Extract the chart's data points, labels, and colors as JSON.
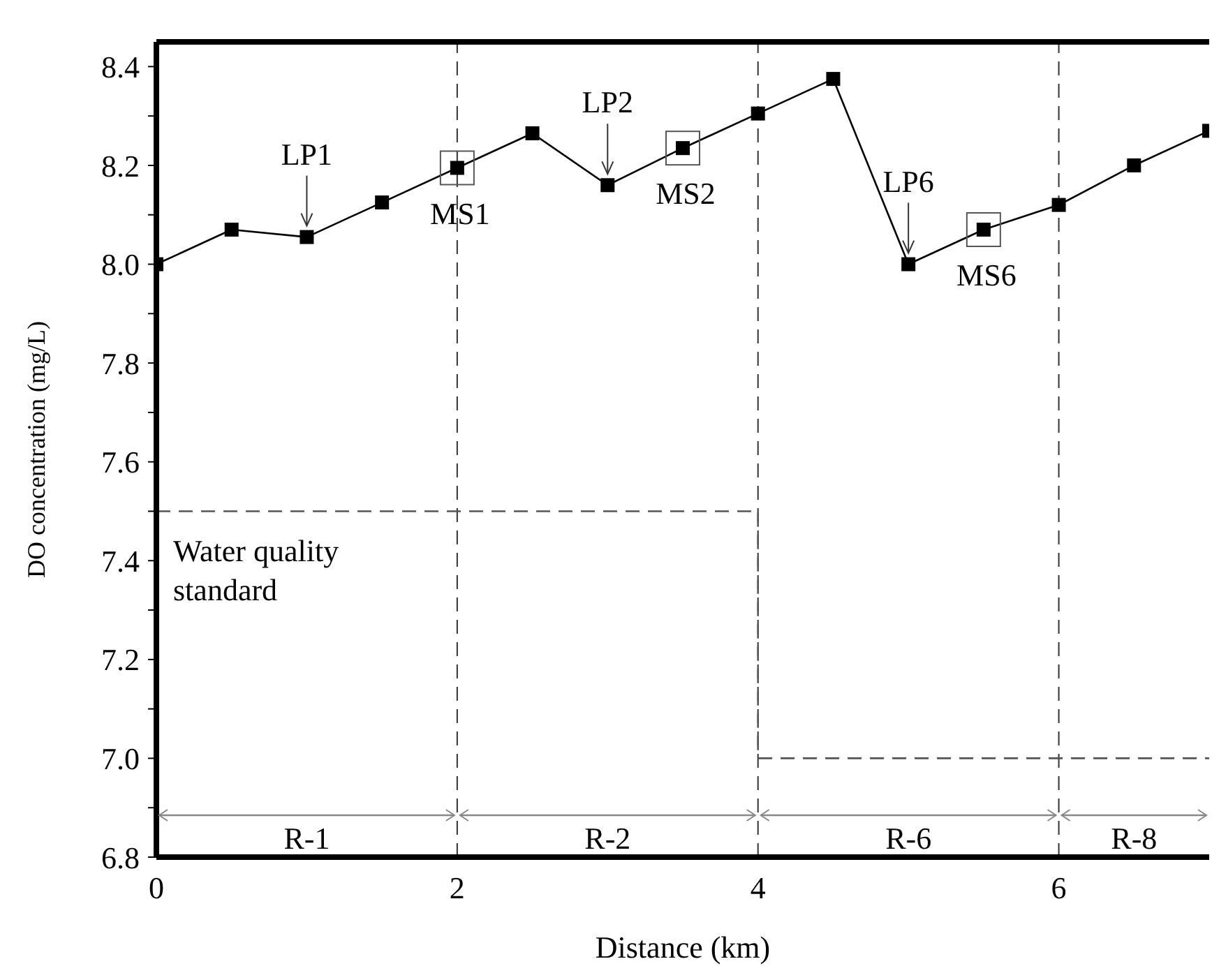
{
  "chart_data": {
    "type": "line",
    "xlabel": "Distance (km)",
    "ylabel": "DO concentration (mg/L)",
    "xlim": [
      0,
      7
    ],
    "xticks": [
      0,
      2,
      4,
      6
    ],
    "ylim": [
      6.8,
      8.45
    ],
    "yticks": [
      6.8,
      {
        "value": 6.9,
        "label": null
      },
      {
        "value": 7.0,
        "label": "7.0"
      },
      {
        "value": 7.1,
        "label": null
      },
      7.2,
      {
        "value": 7.3,
        "label": null
      },
      7.4,
      {
        "value": 7.5,
        "label": null
      },
      7.6,
      {
        "value": 7.7,
        "label": null
      },
      7.8,
      {
        "value": 7.9,
        "label": null
      },
      {
        "value": 8.0,
        "label": "8.0"
      },
      {
        "value": 8.1,
        "label": null
      },
      8.2,
      {
        "value": 8.3,
        "label": null
      },
      8.4
    ],
    "series": [
      {
        "color": "#000000",
        "marker": "square",
        "line_style": "solid",
        "x": [
          0,
          0.5,
          1,
          1.5,
          2,
          2.5,
          3,
          3.5,
          4,
          4.5,
          5,
          5.5,
          6,
          6.5,
          7
        ],
        "values": [
          8.0,
          8.07,
          8.055,
          8.125,
          8.195,
          8.265,
          8.16,
          8.235,
          8.305,
          8.375,
          8.0,
          8.07,
          8.12,
          8.2,
          8.27
        ]
      },
      {
        "color": "#555555",
        "marker": "none",
        "line_style": "dashed",
        "x": [
          0,
          4,
          4,
          7
        ],
        "values": [
          7.5,
          7.5,
          7.0,
          7.0
        ]
      }
    ],
    "ref_lines": [
      {
        "axis": "x",
        "value": 2,
        "color": "#333333",
        "line_style": "dashed"
      },
      {
        "axis": "x",
        "value": 4,
        "color": "#333333",
        "line_style": "dashed"
      },
      {
        "axis": "x",
        "value": 6,
        "color": "#333333",
        "line_style": "dashed"
      }
    ],
    "annotations": [
      {
        "text": "LP1",
        "x": 1,
        "y": 8.055
      },
      {
        "text": "MS1",
        "x": 2,
        "y": 8.195
      },
      {
        "text": "LP2",
        "x": 3,
        "y": 8.16
      },
      {
        "text": "MS2",
        "x": 3.5,
        "y": 8.235
      },
      {
        "text": "LP6",
        "x": 5,
        "y": 8.0
      },
      {
        "text": "MS6",
        "x": 5.5,
        "y": 8.07
      },
      "Water quality standard",
      "R-1",
      "R-2",
      "R-6",
      "R-8"
    ]
  }
}
